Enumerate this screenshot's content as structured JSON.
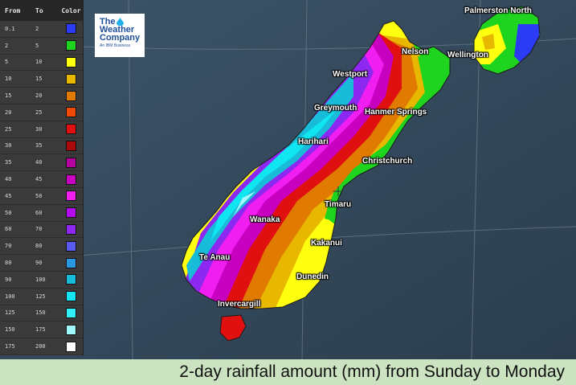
{
  "legend": {
    "headers": {
      "from": "From",
      "to": "To",
      "color": "Color"
    },
    "rows": [
      {
        "from": "0.1",
        "to": "2",
        "color": "#2b3cf4"
      },
      {
        "from": "2",
        "to": "5",
        "color": "#1ed41e"
      },
      {
        "from": "5",
        "to": "10",
        "color": "#ffff10"
      },
      {
        "from": "10",
        "to": "15",
        "color": "#e8b800"
      },
      {
        "from": "15",
        "to": "20",
        "color": "#e07a00"
      },
      {
        "from": "20",
        "to": "25",
        "color": "#f04a00"
      },
      {
        "from": "25",
        "to": "30",
        "color": "#e01010"
      },
      {
        "from": "30",
        "to": "35",
        "color": "#a80a0a"
      },
      {
        "from": "35",
        "to": "40",
        "color": "#b4009c"
      },
      {
        "from": "40",
        "to": "45",
        "color": "#c800c0"
      },
      {
        "from": "45",
        "to": "50",
        "color": "#f01ef0"
      },
      {
        "from": "50",
        "to": "60",
        "color": "#b40af0"
      },
      {
        "from": "60",
        "to": "70",
        "color": "#8c28f0"
      },
      {
        "from": "70",
        "to": "80",
        "color": "#5a5af0"
      },
      {
        "from": "80",
        "to": "90",
        "color": "#2896e0"
      },
      {
        "from": "90",
        "to": "100",
        "color": "#18bcd8"
      },
      {
        "from": "100",
        "to": "125",
        "color": "#10e6f0"
      },
      {
        "from": "125",
        "to": "150",
        "color": "#32f0f8"
      },
      {
        "from": "150",
        "to": "175",
        "color": "#a0f8fc"
      },
      {
        "from": "175",
        "to": "200",
        "color": "#ffffff"
      }
    ]
  },
  "logo": {
    "line1": "The",
    "line2": "Weather",
    "line3": "Company",
    "sub": "An IBM Business"
  },
  "cities": {
    "palmerston_north": "Palmerston North",
    "nelson": "Nelson",
    "wellington": "Wellington",
    "westport": "Westport",
    "greymouth": "Greymouth",
    "hanmer_springs": "Hanmer Springs",
    "harihari": "Harihari",
    "christchurch": "Christchurch",
    "timaru": "Timaru",
    "wanaka": "Wanaka",
    "kakanui": "Kakanui",
    "te_anau": "Te Anau",
    "dunedin": "Dunedin",
    "invercargill": "Invercargill"
  },
  "caption": "2-day rainfall amount (mm) from Sunday to Monday"
}
